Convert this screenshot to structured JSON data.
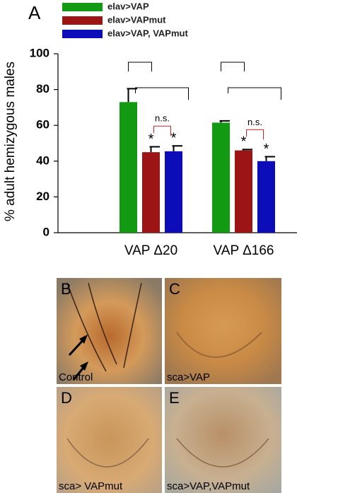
{
  "chart_data": {
    "type": "bar",
    "panel_label": "A",
    "ylabel": "% adult hemizygous males",
    "categories": [
      "VAP Δ20",
      "VAP Δ166"
    ],
    "series": [
      {
        "name": "elav>VAP",
        "color": "#129a12",
        "values": [
          73,
          61.5
        ],
        "errors": [
          7.5,
          1
        ]
      },
      {
        "name": "elav>VAPmut",
        "color": "#9c1414",
        "values": [
          45,
          46
        ],
        "errors": [
          3,
          0.5
        ]
      },
      {
        "name": "elav>VAP, VAPmut",
        "color": "#0c0cb8",
        "values": [
          45.5,
          40
        ],
        "errors": [
          3,
          2.5
        ]
      }
    ],
    "ylim": [
      0,
      100
    ],
    "yticks": [
      0,
      20,
      40,
      60,
      80,
      100
    ],
    "significance_label": "*",
    "ns_label": "n.s."
  },
  "panels": [
    {
      "label": "B",
      "caption": "Control"
    },
    {
      "label": "C",
      "caption": "sca>VAP"
    },
    {
      "label": "D",
      "caption": "sca> VAPmut"
    },
    {
      "label": "E",
      "caption": "sca>VAP,VAPmut"
    }
  ]
}
